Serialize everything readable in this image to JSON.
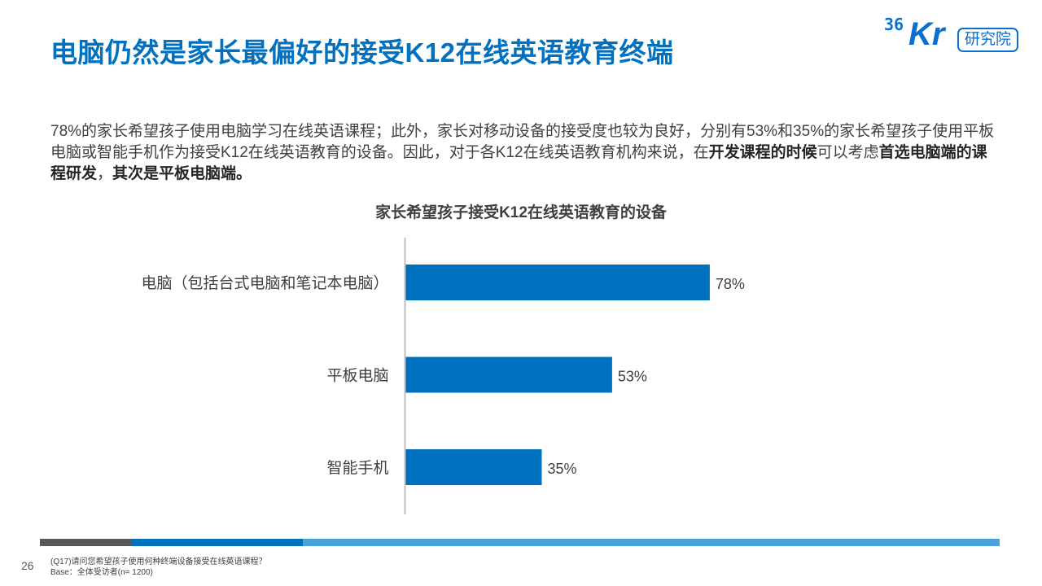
{
  "page": {
    "title": "电脑仍然是家长最偏好的接受K12在线英语教育终端",
    "page_number": "26"
  },
  "logo": {
    "digits": "36",
    "letters": "Kr",
    "label": "研究院"
  },
  "summary": {
    "part1": "78%的家长希望孩子使用电脑学习在线英语课程；此外，家长对移动设备的接受度也较为良好，分别有53%和35%的家长希望孩子使用平板电脑或智能手机作为接受K12在线英语教育的设备。因此，对于各K12在线英语教育机构来说，在",
    "bold1": "开发课程的时候",
    "part2": "可以考虑",
    "bold2": "首选电脑端的课程研发",
    "part3": "，",
    "bold3": "其次是平板电脑端。"
  },
  "chart_data": {
    "type": "bar",
    "orientation": "horizontal",
    "title": "家长希望孩子接受K12在线英语教育的设备",
    "categories": [
      "电脑（包括台式电脑和笔记本电脑）",
      "平板电脑",
      "智能手机"
    ],
    "values": [
      78,
      53,
      35
    ],
    "value_labels": [
      "78%",
      "53%",
      "35%"
    ],
    "unit": "%",
    "xlim": [
      0,
      100
    ],
    "bar_color": "#0070c0",
    "grid": false,
    "legend": "none"
  },
  "footer": {
    "question": "(Q17)请问您希望孩子使用何种终端设备接受在线英语课程？",
    "base": "Base：全体受访者(n= 1200)"
  },
  "colors": {
    "accent": "#0070c0",
    "footer_dark": "#595959",
    "footer_blue": "#0070c0",
    "footer_light": "#4aa3d8"
  }
}
